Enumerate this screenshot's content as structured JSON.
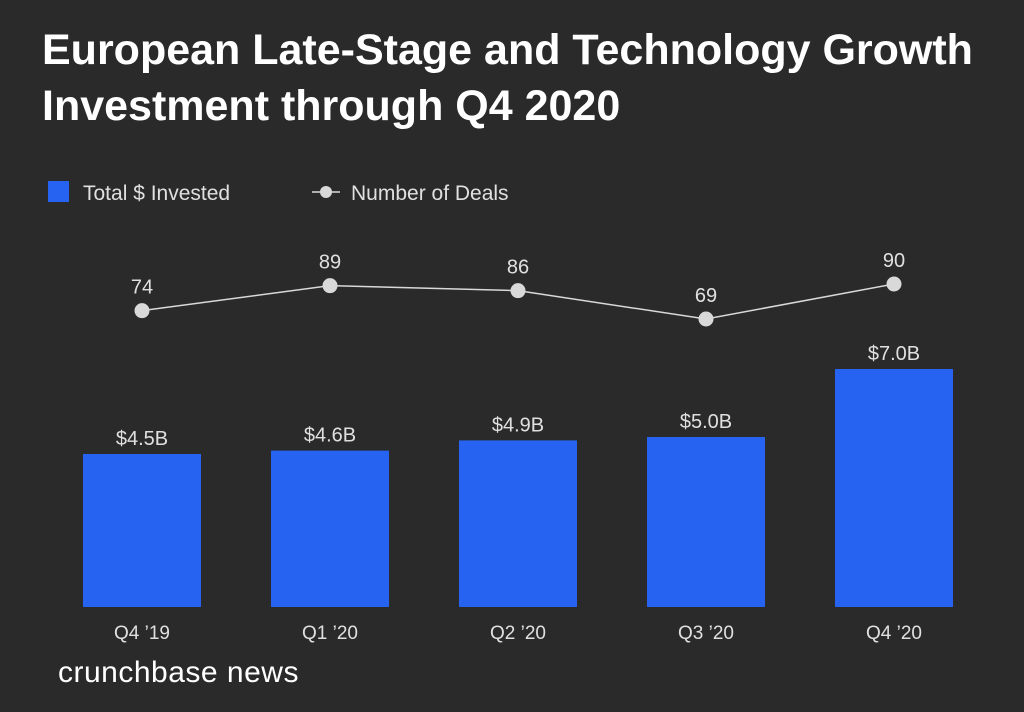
{
  "brand": "crunchbase news",
  "colors": {
    "background": "#2a2a2a",
    "bar": "#2563f0",
    "line": "#d9d9d9",
    "marker": "#d9d9d9",
    "text": "#e0e0e0",
    "title": "#ffffff"
  },
  "chart_data": {
    "type": "bar",
    "title": "European Late-Stage and Technology Growth Investment through Q4 2020",
    "categories": [
      "Q4 ’19",
      "Q1 ’20",
      "Q2 ’20",
      "Q3 ’20",
      "Q4 ’20"
    ],
    "xlabel": "",
    "ylabel": "",
    "legend_position": "top-left",
    "grid": false,
    "series": [
      {
        "name": "Total $ Invested",
        "kind": "bar",
        "values": [
          4.5,
          4.6,
          4.9,
          5.0,
          7.0
        ],
        "labels": [
          "$4.5B",
          "$4.6B",
          "$4.9B",
          "$5.0B",
          "$7.0B"
        ],
        "unit": "$B",
        "ylim": [
          0,
          9.0
        ]
      },
      {
        "name": "Number of Deals",
        "kind": "line",
        "values": [
          74,
          89,
          86,
          69,
          90
        ],
        "labels": [
          "74",
          "89",
          "86",
          "69",
          "90"
        ],
        "ylim": [
          -68,
          120
        ]
      }
    ]
  }
}
